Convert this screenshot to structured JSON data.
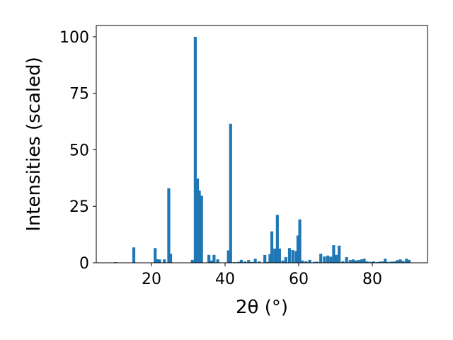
{
  "chart_data": {
    "type": "bar",
    "xlabel": "2θ (°)",
    "ylabel": "Intensities (scaled)",
    "xlim": [
      5,
      95
    ],
    "ylim": [
      0,
      105
    ],
    "xticks": [
      20,
      40,
      60,
      80
    ],
    "yticks": [
      0,
      25,
      50,
      75,
      100
    ],
    "grid": false,
    "bar_color": "#1f77b4",
    "bar_width": 0.8,
    "series": [
      {
        "x": [
          10.2,
          15.2,
          21.0,
          21.5,
          22.2,
          23.5,
          24.7,
          25.2,
          31.1,
          31.9,
          32.5,
          33.0,
          33.6,
          35.6,
          36.3,
          37.0,
          38.0,
          40.9,
          41.5,
          42.5,
          43.6,
          44.4,
          45.4,
          46.4,
          47.3,
          48.2,
          49.3,
          50.8,
          51.6,
          52.2,
          52.7,
          53.5,
          54.2,
          54.8,
          55.7,
          56.5,
          57.5,
          58.4,
          59.3,
          59.8,
          60.3,
          61.0,
          62.0,
          63.0,
          64.2,
          65.0,
          66.0,
          67.0,
          67.9,
          68.7,
          69.5,
          70.2,
          71.0,
          72.0,
          73.0,
          74.0,
          74.8,
          75.5,
          76.2,
          77.0,
          77.8,
          78.6,
          79.5,
          80.4,
          81.3,
          82.0,
          82.7,
          83.5,
          84.3,
          85.2,
          86.0,
          86.8,
          87.6,
          88.4,
          89.3,
          90.0
        ],
        "values": [
          0.3,
          6.8,
          6.5,
          1.6,
          1.5,
          1.5,
          33.0,
          4.0,
          1.3,
          100.0,
          37.3,
          32.0,
          29.7,
          3.5,
          1.0,
          3.5,
          1.5,
          5.5,
          61.5,
          0.3,
          0.4,
          1.3,
          0.6,
          1.2,
          0.4,
          1.8,
          0.6,
          3.5,
          0.4,
          3.8,
          13.9,
          6.3,
          21.2,
          6.3,
          1.0,
          2.5,
          6.5,
          5.6,
          5.2,
          12.1,
          19.2,
          1.0,
          0.7,
          1.3,
          0.4,
          0.5,
          4.0,
          2.8,
          3.2,
          2.7,
          7.8,
          3.5,
          7.6,
          0.7,
          2.5,
          1.2,
          1.5,
          1.0,
          1.2,
          1.5,
          1.8,
          0.6,
          0.4,
          0.6,
          0.3,
          0.5,
          0.6,
          1.8,
          0.4,
          0.5,
          0.6,
          1.2,
          1.5,
          0.8,
          1.8,
          1.3
        ]
      }
    ]
  }
}
